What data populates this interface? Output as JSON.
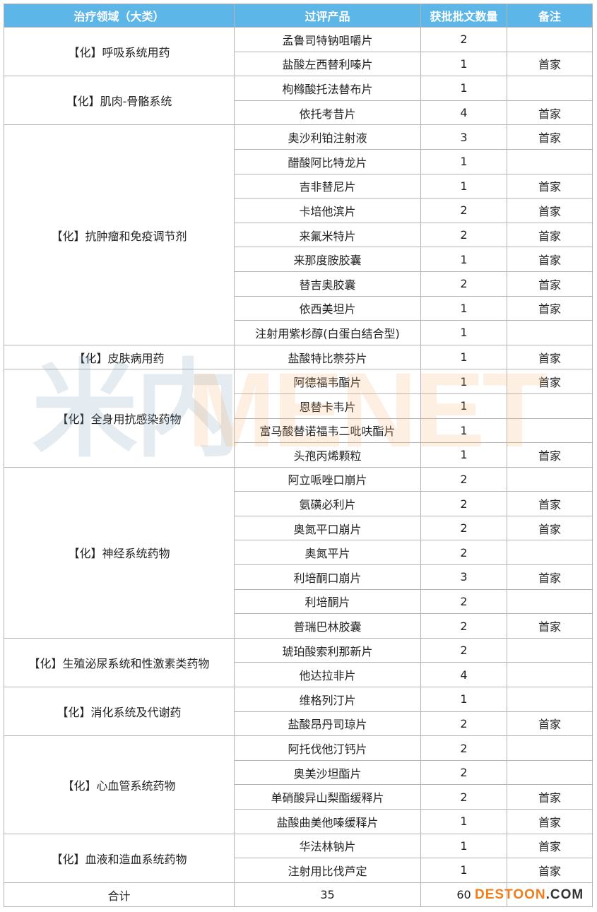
{
  "table": {
    "header": [
      "治疗领域（大类）",
      "过评产品",
      "获批批文数量",
      "备注"
    ],
    "groups": [
      {
        "category": "【化】呼吸系统用药",
        "items": [
          {
            "product": "孟鲁司特钠咀嚼片",
            "count": 2
          },
          {
            "product": "盐酸左西替利嗪片",
            "count": 1,
            "note": "首家"
          }
        ]
      },
      {
        "category": "【化】肌肉-骨骼系统",
        "items": [
          {
            "product": "枸橼酸托法替布片",
            "count": 1
          },
          {
            "product": "依托考昔片",
            "count": 4,
            "note": "首家"
          }
        ]
      },
      {
        "category": "【化】抗肿瘤和免疫调节剂",
        "items": [
          {
            "product": "奥沙利铂注射液",
            "count": 3,
            "note": "首家"
          },
          {
            "product": "醋酸阿比特龙片",
            "count": 1
          },
          {
            "product": "吉非替尼片",
            "count": 1,
            "note": "首家"
          },
          {
            "product": "卡培他滨片",
            "count": 2,
            "note": "首家"
          },
          {
            "product": "来氟米特片",
            "count": 2,
            "note": "首家"
          },
          {
            "product": "来那度胺胶囊",
            "count": 1,
            "note": "首家"
          },
          {
            "product": "替吉奥胶囊",
            "count": 2,
            "note": "首家"
          },
          {
            "product": "依西美坦片",
            "count": 1,
            "note": "首家"
          },
          {
            "product": "注射用紫杉醇(白蛋白结合型)",
            "count": 1
          }
        ]
      },
      {
        "category": "【化】皮肤病用药",
        "items": [
          {
            "product": "盐酸特比萘芬片",
            "count": 1,
            "note": "首家"
          }
        ]
      },
      {
        "category": "【化】全身用抗感染药物",
        "items": [
          {
            "product": "阿德福韦酯片",
            "count": 1,
            "note": "首家"
          },
          {
            "product": "恩替卡韦片",
            "count": 1
          },
          {
            "product": "富马酸替诺福韦二吡呋酯片",
            "count": 1
          },
          {
            "product": "头孢丙烯颗粒",
            "count": 1,
            "note": "首家"
          }
        ]
      },
      {
        "category": "【化】神经系统药物",
        "items": [
          {
            "product": "阿立哌唑口崩片",
            "count": 2
          },
          {
            "product": "氨磺必利片",
            "count": 2,
            "note": "首家"
          },
          {
            "product": "奥氮平口崩片",
            "count": 2,
            "note": "首家"
          },
          {
            "product": "奥氮平片",
            "count": 2
          },
          {
            "product": "利培酮口崩片",
            "count": 3,
            "note": "首家"
          },
          {
            "product": "利培酮片",
            "count": 2
          },
          {
            "product": "普瑞巴林胶囊",
            "count": 2,
            "note": "首家"
          }
        ]
      },
      {
        "category": "【化】生殖泌尿系统和性激素类药物",
        "items": [
          {
            "product": "琥珀酸索利那新片",
            "count": 2
          },
          {
            "product": "他达拉非片",
            "count": 4
          }
        ]
      },
      {
        "category": "【化】消化系统及代谢药",
        "items": [
          {
            "product": "维格列汀片",
            "count": 1
          },
          {
            "product": "盐酸昂丹司琼片",
            "count": 2,
            "note": "首家"
          }
        ]
      },
      {
        "category": "【化】心血管系统药物",
        "items": [
          {
            "product": "阿托伐他汀钙片",
            "count": 2
          },
          {
            "product": "奥美沙坦酯片",
            "count": 2
          },
          {
            "product": "单硝酸异山梨酯缓释片",
            "count": 2,
            "note": "首家"
          },
          {
            "product": "盐酸曲美他嗪缓释片",
            "count": 1,
            "note": "首家"
          }
        ]
      },
      {
        "category": "【化】血液和造血系统药物",
        "items": [
          {
            "product": "华法林钠片",
            "count": 1,
            "note": "首家"
          },
          {
            "product": "注射用比伐芦定",
            "count": 1,
            "note": "首家"
          }
        ]
      }
    ],
    "total": {
      "label": "合计",
      "products": 35,
      "count": 60
    }
  },
  "watermark": {
    "left": "米内",
    "right": "MENET"
  },
  "corner_mark": {
    "brand": "DESTOON",
    "suffix": ".COM"
  }
}
